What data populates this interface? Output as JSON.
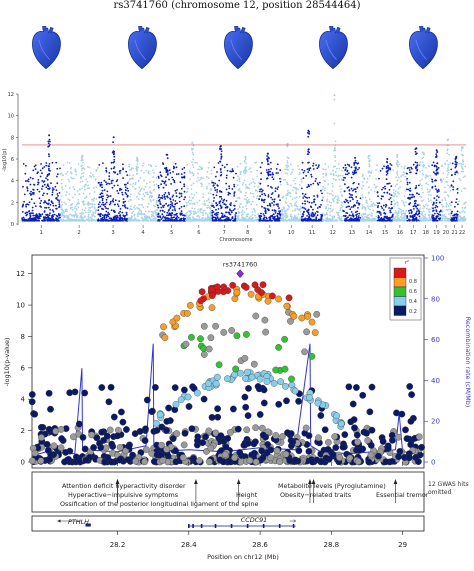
{
  "figure": {
    "title": "rs3741760 (chromosome 12, position 28544464)"
  },
  "colors": {
    "manhattan_dark": "#0a1fb5",
    "manhattan_light": "#a9d3e8",
    "threshold_line": "#e05050",
    "heart": "#2a52d6",
    "recomb": "#3333cc",
    "lead_snp": "#8a2be2",
    "ld_bins": [
      "#d7191c",
      "#f89d2a",
      "#33c233",
      "#87ceeb",
      "#0a1966"
    ]
  },
  "icons": [
    "heart-icon",
    "heart-icon",
    "heart-icon",
    "heart-icon",
    "heart-icon"
  ],
  "chart_data": [
    {
      "type": "scatter",
      "subtype": "manhattan",
      "xlabel": "Chromosome",
      "ylabel": "-log10(p)",
      "ylim": [
        0,
        12
      ],
      "yticks": [
        0,
        2,
        4,
        6,
        8,
        10,
        12
      ],
      "threshold": 7.3,
      "chromosomes": [
        "1",
        "2",
        "3",
        "4",
        "5",
        "6",
        "7",
        "8",
        "9",
        "10",
        "11",
        "12",
        "13",
        "14",
        "15",
        "16",
        "17",
        "18",
        "19",
        "20",
        "21",
        "22"
      ],
      "chromosome_peaks": [
        8.2,
        6.3,
        8.0,
        6.1,
        6.4,
        7.5,
        7.2,
        6.2,
        6.5,
        7.4,
        8.6,
        11.9,
        6.1,
        6.3,
        6.0,
        6.4,
        7.0,
        6.6,
        6.8,
        7.8,
        6.2,
        7.1
      ],
      "grid": false
    },
    {
      "type": "scatter",
      "subtype": "regional-association",
      "lead_snp": "rs3741760",
      "lead_position_mb": 28.544,
      "lead_logp": 12.0,
      "xlabel": "Position on chr12 (Mb)",
      "ylabel": "-log10(p-value)",
      "y2label": "Recombination rate (cM/Mb)",
      "xlim": [
        27.96,
        29.06
      ],
      "ylim": [
        0,
        13
      ],
      "y2lim": [
        0,
        100
      ],
      "xticks": [
        28.2,
        28.4,
        28.6,
        28.8,
        29
      ],
      "yticks": [
        0,
        2,
        4,
        6,
        8,
        10,
        12
      ],
      "y2ticks": [
        0,
        20,
        40,
        60,
        80,
        100
      ],
      "legend": {
        "title": "r²",
        "labels": [
          "0.8",
          "0.6",
          "0.4",
          "0.2"
        ],
        "placement": "top-right"
      },
      "gwas_traits": [
        {
          "label": "Attention deficit hyperactivity disorder",
          "pos_mb": 28.2
        },
        {
          "label": "Hyperactive−impulsive symptoms",
          "pos_mb": 28.2
        },
        {
          "label": "Ossification of the posterior longitudinal ligament of the spine",
          "pos_mb": 28.42
        },
        {
          "label": "Height",
          "pos_mb": 28.54
        },
        {
          "label": "Metabolite levels (Pyroglutamine)",
          "pos_mb": 28.75
        },
        {
          "label": "Obesity−related traits",
          "pos_mb": 28.74
        },
        {
          "label": "Essential tremor",
          "pos_mb": 28.98
        }
      ],
      "gwas_note": "12 GWAS hits omitted",
      "genes": [
        {
          "name": "PTHLH",
          "start_mb": 28.11,
          "end_mb": 28.125,
          "strand": "-"
        },
        {
          "name": "CCDC91",
          "start_mb": 28.4,
          "end_mb": 28.7,
          "strand": "+"
        }
      ]
    }
  ]
}
